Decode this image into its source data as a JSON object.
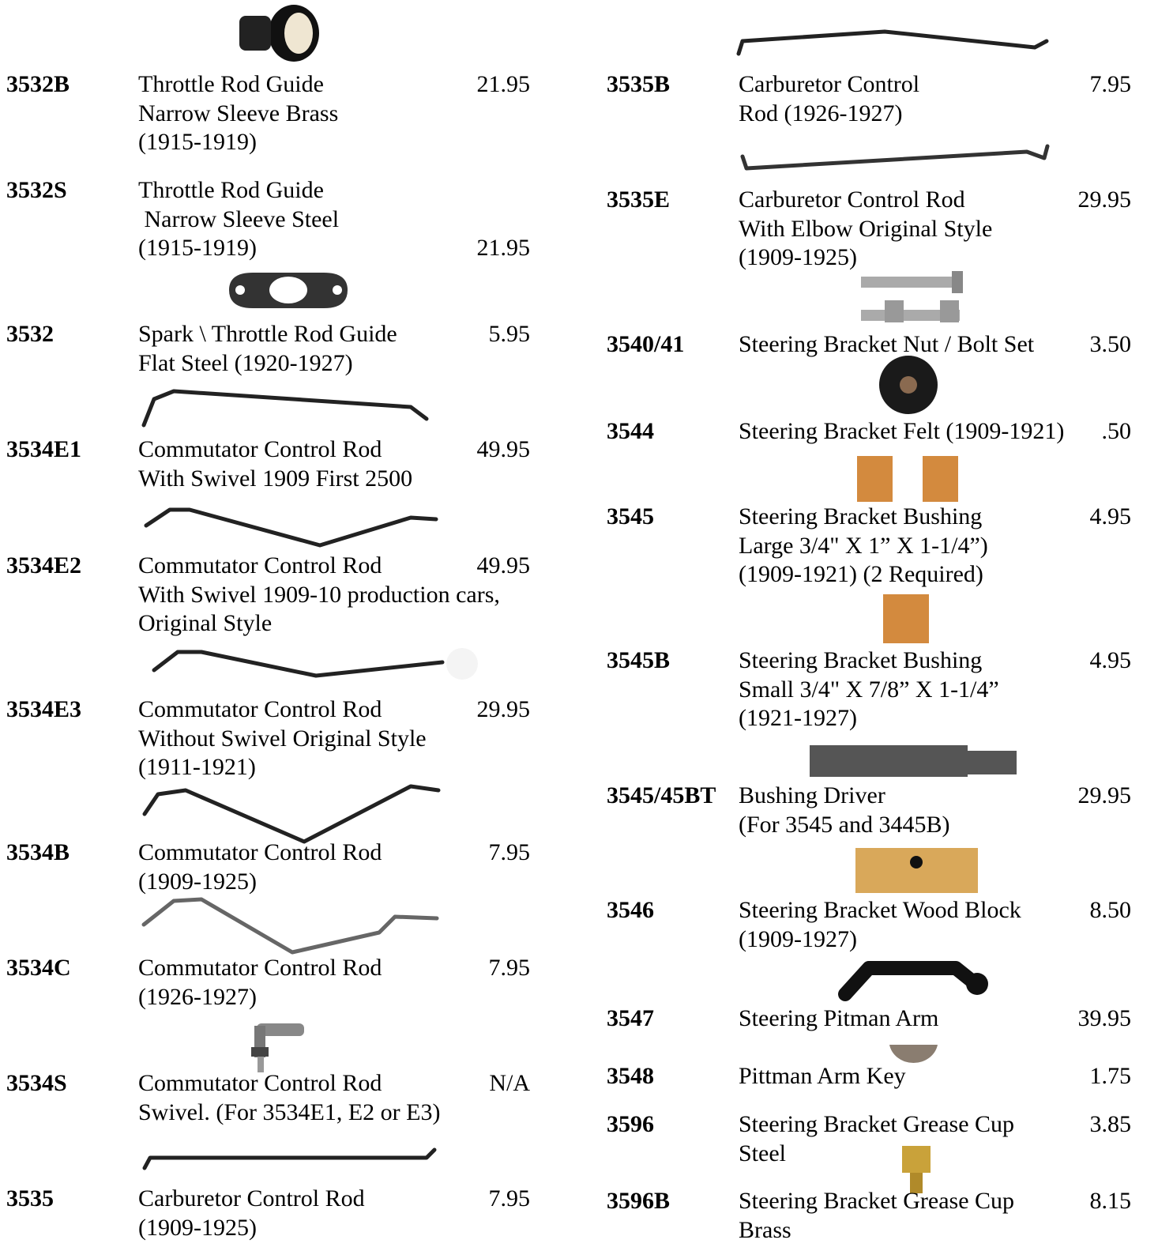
{
  "left": [
    {
      "part": "3532B",
      "lines": [
        "Throttle Rod Guide",
        "Narrow Sleeve Brass",
        "(1915-1919)"
      ],
      "price": "21.95"
    },
    {
      "part": "3532S",
      "lines": [
        "Throttle Rod Guide",
        " Narrow Sleeve Steel",
        "(1915-1919)"
      ],
      "price": "21.95"
    },
    {
      "part": "3532",
      "lines": [
        "Spark \\ Throttle Rod Guide",
        "Flat Steel (1920-1927)"
      ],
      "price": "5.95"
    },
    {
      "part": "3534E1",
      "lines": [
        "Commutator Control Rod",
        "With Swivel 1909 First 2500"
      ],
      "price": "49.95"
    },
    {
      "part": "3534E2",
      "lines": [
        "Commutator Control Rod",
        "With Swivel 1909-10 production cars,",
        "Original Style"
      ],
      "price": "49.95"
    },
    {
      "part": "3534E3",
      "lines": [
        "Commutator Control Rod",
        "Without Swivel Original Style",
        "(1911-1921)"
      ],
      "price": "29.95"
    },
    {
      "part": "3534B",
      "lines": [
        "Commutator Control Rod",
        "(1909-1925)"
      ],
      "price": "7.95"
    },
    {
      "part": "3534C",
      "lines": [
        "Commutator Control Rod",
        "(1926-1927)"
      ],
      "price": "7.95"
    },
    {
      "part": "3534S",
      "lines": [
        "Commutator Control Rod",
        "Swivel. (For 3534E1, E2 or E3)"
      ],
      "price": "N/A"
    },
    {
      "part": "3535",
      "lines": [
        "Carburetor Control Rod",
        "(1909-1925)"
      ],
      "price": "7.95"
    }
  ],
  "right": [
    {
      "part": "3535B",
      "lines": [
        "Carburetor Control",
        "Rod (1926-1927)"
      ],
      "price": "7.95"
    },
    {
      "part": "3535E",
      "lines": [
        "Carburetor Control Rod",
        "With Elbow Original Style",
        "(1909-1925)"
      ],
      "price": "29.95"
    },
    {
      "part": "3540/41",
      "lines": [
        "Steering Bracket Nut / Bolt Set"
      ],
      "price": "3.50"
    },
    {
      "part": "3544",
      "lines": [
        "Steering Bracket Felt (1909-1921)"
      ],
      "price": ".50"
    },
    {
      "part": "3545",
      "lines": [
        "Steering Bracket Bushing",
        "Large 3/4\" X 1” X 1-1/4”)",
        "(1909-1921) (2 Required)"
      ],
      "price": "4.95"
    },
    {
      "part": "3545B",
      "lines": [
        "Steering Bracket Bushing",
        "Small 3/4\" X 7/8” X 1-1/4”",
        "(1921-1927)"
      ],
      "price": "4.95"
    },
    {
      "part": "3545/45BT",
      "lines": [
        "Bushing Driver",
        "(For 3545 and 3445B)"
      ],
      "price": "29.95"
    },
    {
      "part": "3546",
      "lines": [
        "Steering Bracket Wood Block",
        "(1909-1927)"
      ],
      "price": "8.50"
    },
    {
      "part": "3547",
      "lines": [
        "Steering Pitman Arm"
      ],
      "price": "39.95"
    },
    {
      "part": "3548",
      "lines": [
        "Pittman Arm Key"
      ],
      "price": "1.75"
    },
    {
      "part": "3596",
      "lines": [
        "Steering Bracket Grease Cup",
        "Steel"
      ],
      "price": "3.85"
    },
    {
      "part": "3596B",
      "lines": [
        "Steering Bracket Grease Cup",
        "Brass"
      ],
      "price": "8.15"
    }
  ]
}
